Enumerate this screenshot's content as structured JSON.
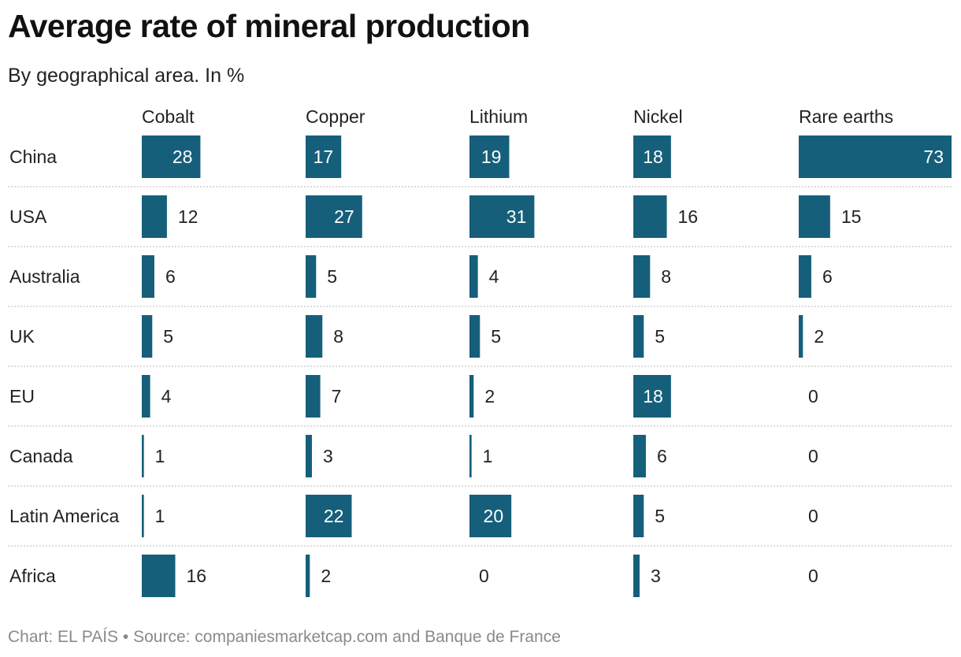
{
  "header": {
    "title": "Average rate of mineral production",
    "subtitle": "By geographical area. In %"
  },
  "footer": {
    "text": "Chart: EL PAÍS • Source: companiesmarketcap.com and Banque de France"
  },
  "colors": {
    "bar": "#165f7a",
    "inside_label": "#ffffff",
    "outside_label": "#222222",
    "divider": "#c8c8c8"
  },
  "chart_data": {
    "type": "bar",
    "orientation": "horizontal-small-multiples",
    "title": "Average rate of mineral production",
    "subtitle": "By geographical area. In %",
    "unit": "%",
    "xlim": [
      0,
      73
    ],
    "categories": [
      "China",
      "USA",
      "Australia",
      "UK",
      "EU",
      "Canada",
      "Latin America",
      "Africa"
    ],
    "series": [
      {
        "name": "Cobalt",
        "values": [
          28,
          12,
          6,
          5,
          4,
          1,
          1,
          16
        ]
      },
      {
        "name": "Copper",
        "values": [
          17,
          27,
          5,
          8,
          7,
          3,
          22,
          2
        ]
      },
      {
        "name": "Lithium",
        "values": [
          19,
          31,
          4,
          5,
          2,
          1,
          20,
          0
        ]
      },
      {
        "name": "Nickel",
        "values": [
          18,
          16,
          8,
          5,
          18,
          6,
          5,
          3
        ]
      },
      {
        "name": "Rare earths",
        "values": [
          73,
          15,
          6,
          2,
          0,
          0,
          0,
          0
        ]
      }
    ]
  }
}
